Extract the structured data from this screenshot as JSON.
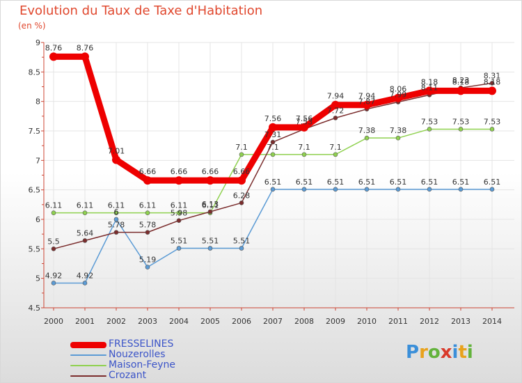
{
  "header": {
    "title": "Evolution du Taux de Taxe d'Habitation",
    "unit": "(en %)"
  },
  "logo": {
    "letters": [
      "P",
      "r",
      "o",
      "x",
      "i",
      "t",
      "i"
    ],
    "colors": [
      "#3b8fd9",
      "#e8a21c",
      "#63b33c",
      "#d93a2b",
      "#3b8fd9",
      "#e8a21c",
      "#63b33c"
    ]
  },
  "chart_data": {
    "type": "line",
    "title": "Evolution du Taux de Taxe d'Habitation",
    "ylabel": "(en %)",
    "x": [
      "2000",
      "2001",
      "2002",
      "2003",
      "2004",
      "2005",
      "2006",
      "2007",
      "2008",
      "2009",
      "2010",
      "2011",
      "2012",
      "2013",
      "2014"
    ],
    "ylim": [
      4.5,
      9
    ],
    "yticks": [
      "4.5",
      "5",
      "5.5",
      "6",
      "6.5",
      "7",
      "7.5",
      "8",
      "8.5",
      "9"
    ],
    "grid": true,
    "legend_position": "bottom-left",
    "series": [
      {
        "name": "FRESSELINES",
        "color": "#ee0000",
        "values": [
          8.76,
          8.76,
          7.01,
          6.66,
          6.66,
          6.66,
          6.66,
          7.56,
          7.56,
          7.94,
          7.94,
          8.06,
          8.18,
          8.18,
          8.18
        ],
        "labels": [
          "8.76",
          "8.76",
          "7.01",
          "6.66",
          "6.66",
          "6.66",
          "6.66",
          "7.56",
          "7.56",
          "7.94",
          "7.94",
          "8.06",
          "8.18",
          "8.18",
          "8.18"
        ]
      },
      {
        "name": "Nouzerolles",
        "color": "#5b9bd5",
        "values": [
          4.92,
          4.92,
          6,
          5.19,
          5.51,
          5.51,
          5.51,
          6.51,
          6.51,
          6.51,
          6.51,
          6.51,
          6.51,
          6.51,
          6.51
        ],
        "labels": [
          "4.92",
          "4.92",
          "6",
          "5.19",
          "5.51",
          "5.51",
          "5.51",
          "6.51",
          "6.51",
          "6.51",
          "6.51",
          "6.51",
          "6.51",
          "6.51",
          "6.51"
        ]
      },
      {
        "name": "Maison-Feyne",
        "color": "#8fd14f",
        "values": [
          6.11,
          6.11,
          6.11,
          6.11,
          6.11,
          6.11,
          7.1,
          7.1,
          7.1,
          7.1,
          7.38,
          7.38,
          7.53,
          7.53,
          7.53
        ],
        "labels": [
          "6.11",
          "6.11",
          "6.11",
          "6.11",
          "6.11",
          "6.11",
          "7.1",
          "7.1",
          "7.1",
          "7.1",
          "7.38",
          "7.38",
          "7.53",
          "7.53",
          "7.53"
        ]
      },
      {
        "name": "Crozant",
        "color": "#7b2d2d",
        "values": [
          5.5,
          5.64,
          5.78,
          5.78,
          5.98,
          6.13,
          6.28,
          7.31,
          7.53,
          7.72,
          7.87,
          7.99,
          8.11,
          8.23,
          8.31
        ],
        "labels": [
          "5.5",
          "5.64",
          "5.78",
          "5.78",
          "5.98",
          "6.13",
          "6.28",
          "7.31",
          "7.53",
          "7.72",
          "7.87",
          "7.99",
          "8.11",
          "8.23",
          "8.31"
        ]
      }
    ]
  }
}
